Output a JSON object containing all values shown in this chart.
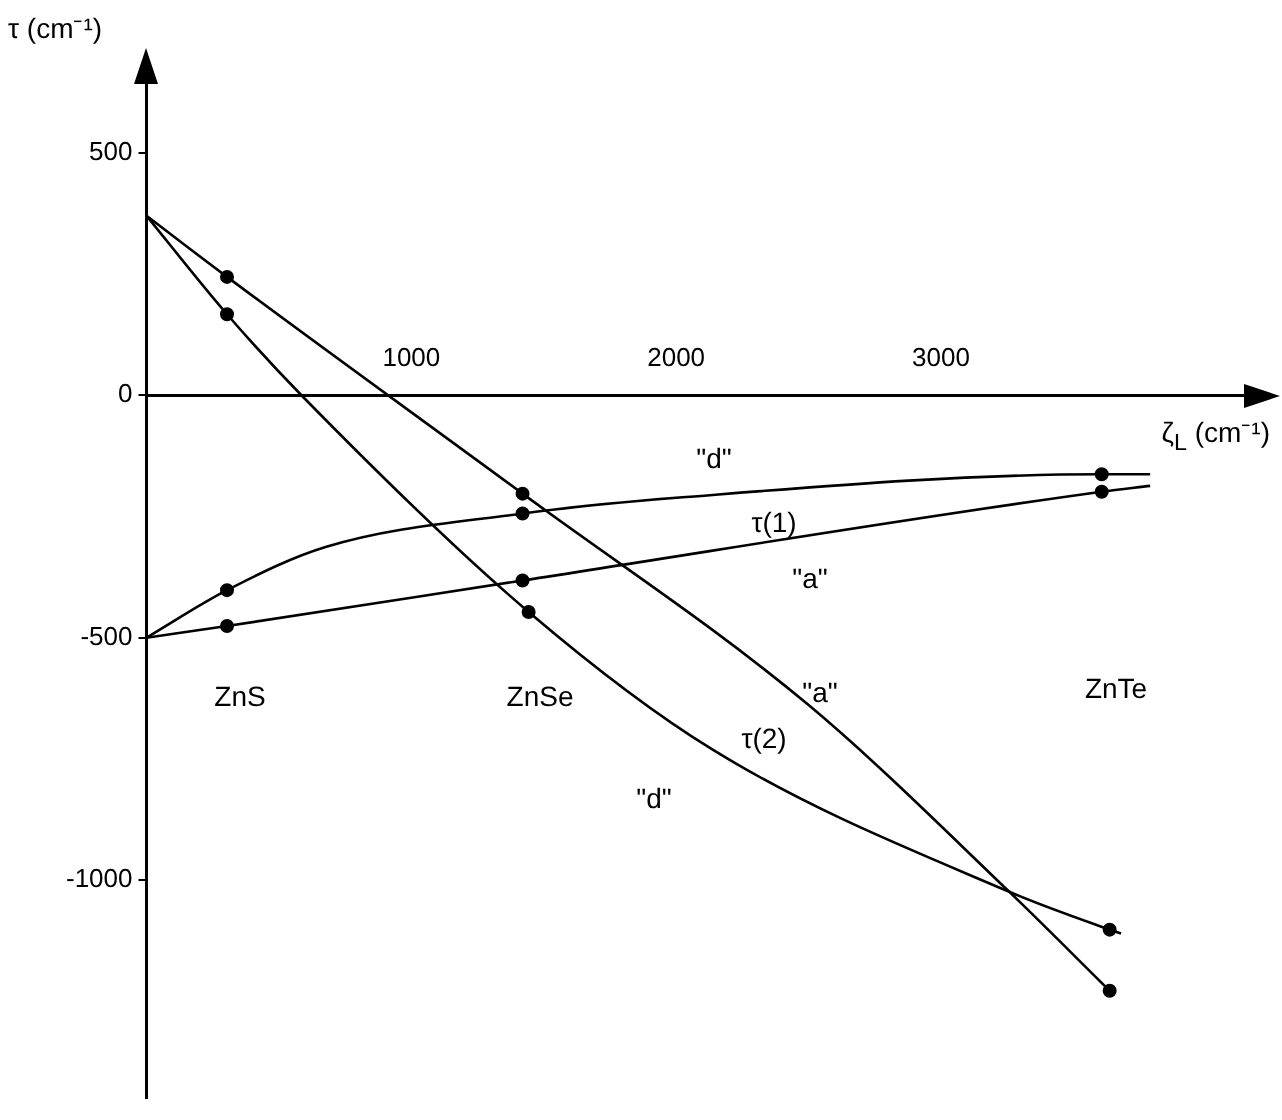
{
  "chart_data": {
    "type": "line",
    "xlabel": "ζ$_{L}$ (cm⁻¹)",
    "ylabel": "τ (cm⁻¹)",
    "xlim": [
      0,
      4250
    ],
    "ylim": [
      -1450,
      650
    ],
    "xticks": [
      1000,
      2000,
      3000
    ],
    "yticks": [
      500,
      0,
      -500,
      -1000
    ],
    "grid": false,
    "legend": false,
    "line_style": "solid",
    "marker": "none",
    "series": [
      {
        "color": "#000000",
        "x": [
          0,
          304,
          1420,
          2498,
          3258,
          3637
        ],
        "values": [
          370,
          244,
          -203,
          -638,
          -1024,
          -1228
        ]
      },
      {
        "color": "#000000",
        "x": [
          0,
          304,
          585,
          1443,
          2141,
          3258,
          3637,
          3680
        ],
        "values": [
          370,
          167,
          0,
          -447,
          -732,
          -1024,
          -1102,
          -1110
        ]
      },
      {
        "color": "#000000",
        "x": [
          0,
          304,
          676,
          1420,
          2012,
          3607,
          3790
        ],
        "values": [
          -500,
          -402,
          -313,
          -244,
          -211,
          -163,
          -163
        ]
      },
      {
        "color": "#000000",
        "x": [
          0,
          304,
          1420,
          3607,
          3790
        ],
        "values": [
          -500,
          -476,
          -382,
          -199,
          -187
        ]
      },
      {
        "type": "scatter",
        "color": "#000000",
        "marker": "circle",
        "x": [
          304,
          304,
          304,
          304,
          1420,
          1443,
          1420,
          1420,
          3607,
          3607,
          3637,
          3637
        ],
        "values": [
          244,
          167,
          -402,
          -476,
          -203,
          -447,
          -244,
          -382,
          -163,
          -199,
          -1102,
          -1228
        ]
      }
    ],
    "annotations": [
      "ZnS",
      "ZnSe",
      "ZnTe",
      "\"d\"",
      "τ(1)",
      "\"a\"",
      "\"a\"",
      "τ(2)",
      "\"d\""
    ]
  }
}
